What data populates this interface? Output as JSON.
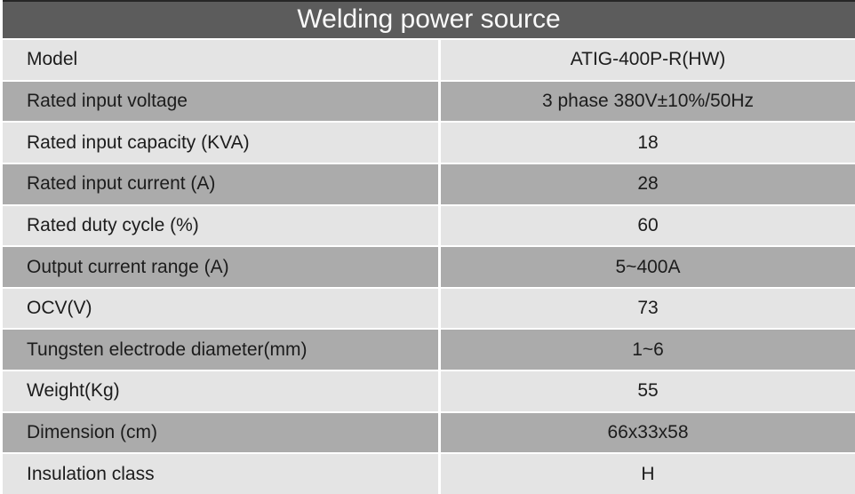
{
  "title": "Welding power source",
  "colors": {
    "header_bg": "#5c5c5c",
    "header_text": "#fafafa",
    "row_dark": "#ababab",
    "row_light": "#e4e4e4",
    "separator": "#ffffff",
    "top_line": "#262626",
    "body_text": "#1c1c1c"
  },
  "rows": [
    {
      "label": "Model",
      "value": "ATIG-400P-R(HW)"
    },
    {
      "label": "Rated input voltage",
      "value": "3 phase 380V±10%/50Hz"
    },
    {
      "label": "Rated input capacity (KVA)",
      "value": "18"
    },
    {
      "label": "Rated input current (A)",
      "value": "28"
    },
    {
      "label": "Rated duty cycle (%)",
      "value": "60"
    },
    {
      "label": "Output current range (A)",
      "value": "5~400A"
    },
    {
      "label": "OCV(V)",
      "value": "73"
    },
    {
      "label": "Tungsten electrode diameter(mm)",
      "value": "1~6"
    },
    {
      "label": "Weight(Kg)",
      "value": "55"
    },
    {
      "label": "Dimension (cm)",
      "value": "66x33x58"
    },
    {
      "label": "Insulation class",
      "value": "H"
    }
  ]
}
